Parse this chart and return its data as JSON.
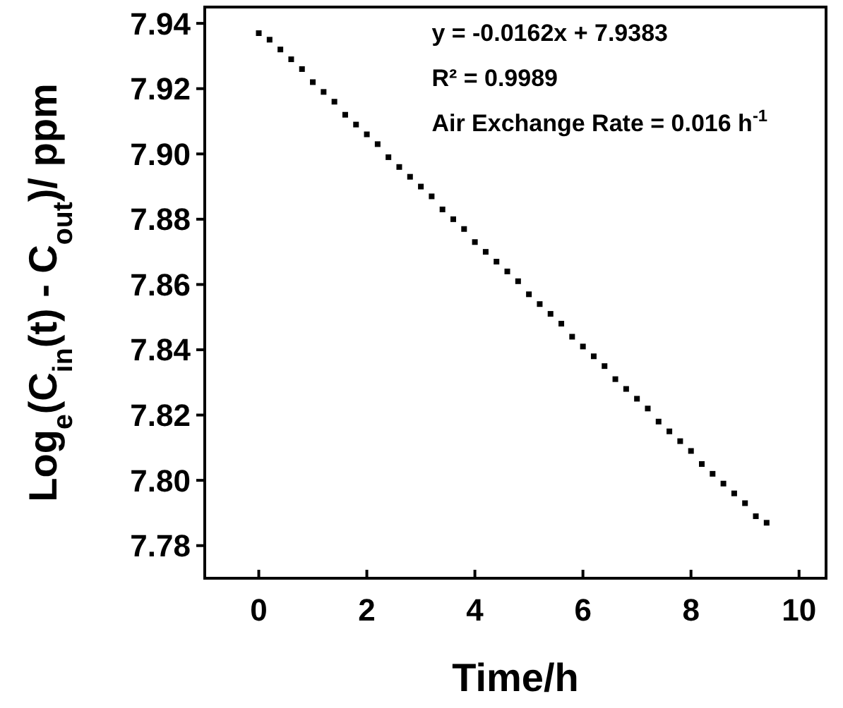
{
  "chart_data": {
    "type": "scatter",
    "xlabel": "Time/h",
    "ylabel": "Log$_{e}$(C$_{in}$(t) - C$_{out}$)/ ppm",
    "annotations": [
      "y = -0.0162x + 7.9383",
      "R² = 0.9989",
      "Air Exchange Rate = 0.016 h$^{-1}$"
    ],
    "xlim": [
      -1,
      10.5
    ],
    "ylim": [
      7.77,
      7.945
    ],
    "xticks": [
      0,
      2,
      4,
      6,
      8,
      10
    ],
    "yticks": [
      {
        "value": 7.78,
        "label": "7.78"
      },
      {
        "value": 7.8,
        "label": "7.80"
      },
      {
        "value": 7.82,
        "label": "7.82"
      },
      {
        "value": 7.84,
        "label": "7.84"
      },
      {
        "value": 7.86,
        "label": "7.86"
      },
      {
        "value": 7.88,
        "label": "7.88"
      },
      {
        "value": 7.9,
        "label": "7.90"
      },
      {
        "value": 7.92,
        "label": "7.92"
      },
      {
        "value": 7.94,
        "label": "7.94"
      }
    ],
    "marker": "square",
    "grid": false,
    "series": [
      {
        "color": "#000000",
        "x": [
          0,
          0.2,
          0.4,
          0.6,
          0.8,
          1,
          1.2,
          1.4,
          1.6,
          1.8,
          2,
          2.2,
          2.4,
          2.6,
          2.8,
          3,
          3.2,
          3.4,
          3.6,
          3.8,
          4,
          4.2,
          4.4,
          4.6,
          4.8,
          5,
          5.2,
          5.4,
          5.6,
          5.8,
          6,
          6.2,
          6.4,
          6.6,
          6.8,
          7,
          7.2,
          7.4,
          7.6,
          7.8,
          8,
          8.2,
          8.4,
          8.6,
          8.8,
          9,
          9.2,
          9.4
        ],
        "values": [
          7.937,
          7.935,
          7.932,
          7.929,
          7.926,
          7.922,
          7.919,
          7.916,
          7.912,
          7.909,
          7.906,
          7.903,
          7.899,
          7.896,
          7.893,
          7.89,
          7.887,
          7.883,
          7.88,
          7.877,
          7.873,
          7.87,
          7.867,
          7.864,
          7.861,
          7.857,
          7.854,
          7.851,
          7.848,
          7.844,
          7.841,
          7.838,
          7.835,
          7.831,
          7.828,
          7.825,
          7.822,
          7.818,
          7.815,
          7.812,
          7.809,
          7.805,
          7.802,
          7.799,
          7.796,
          7.793,
          7.789,
          7.787
        ]
      }
    ]
  }
}
